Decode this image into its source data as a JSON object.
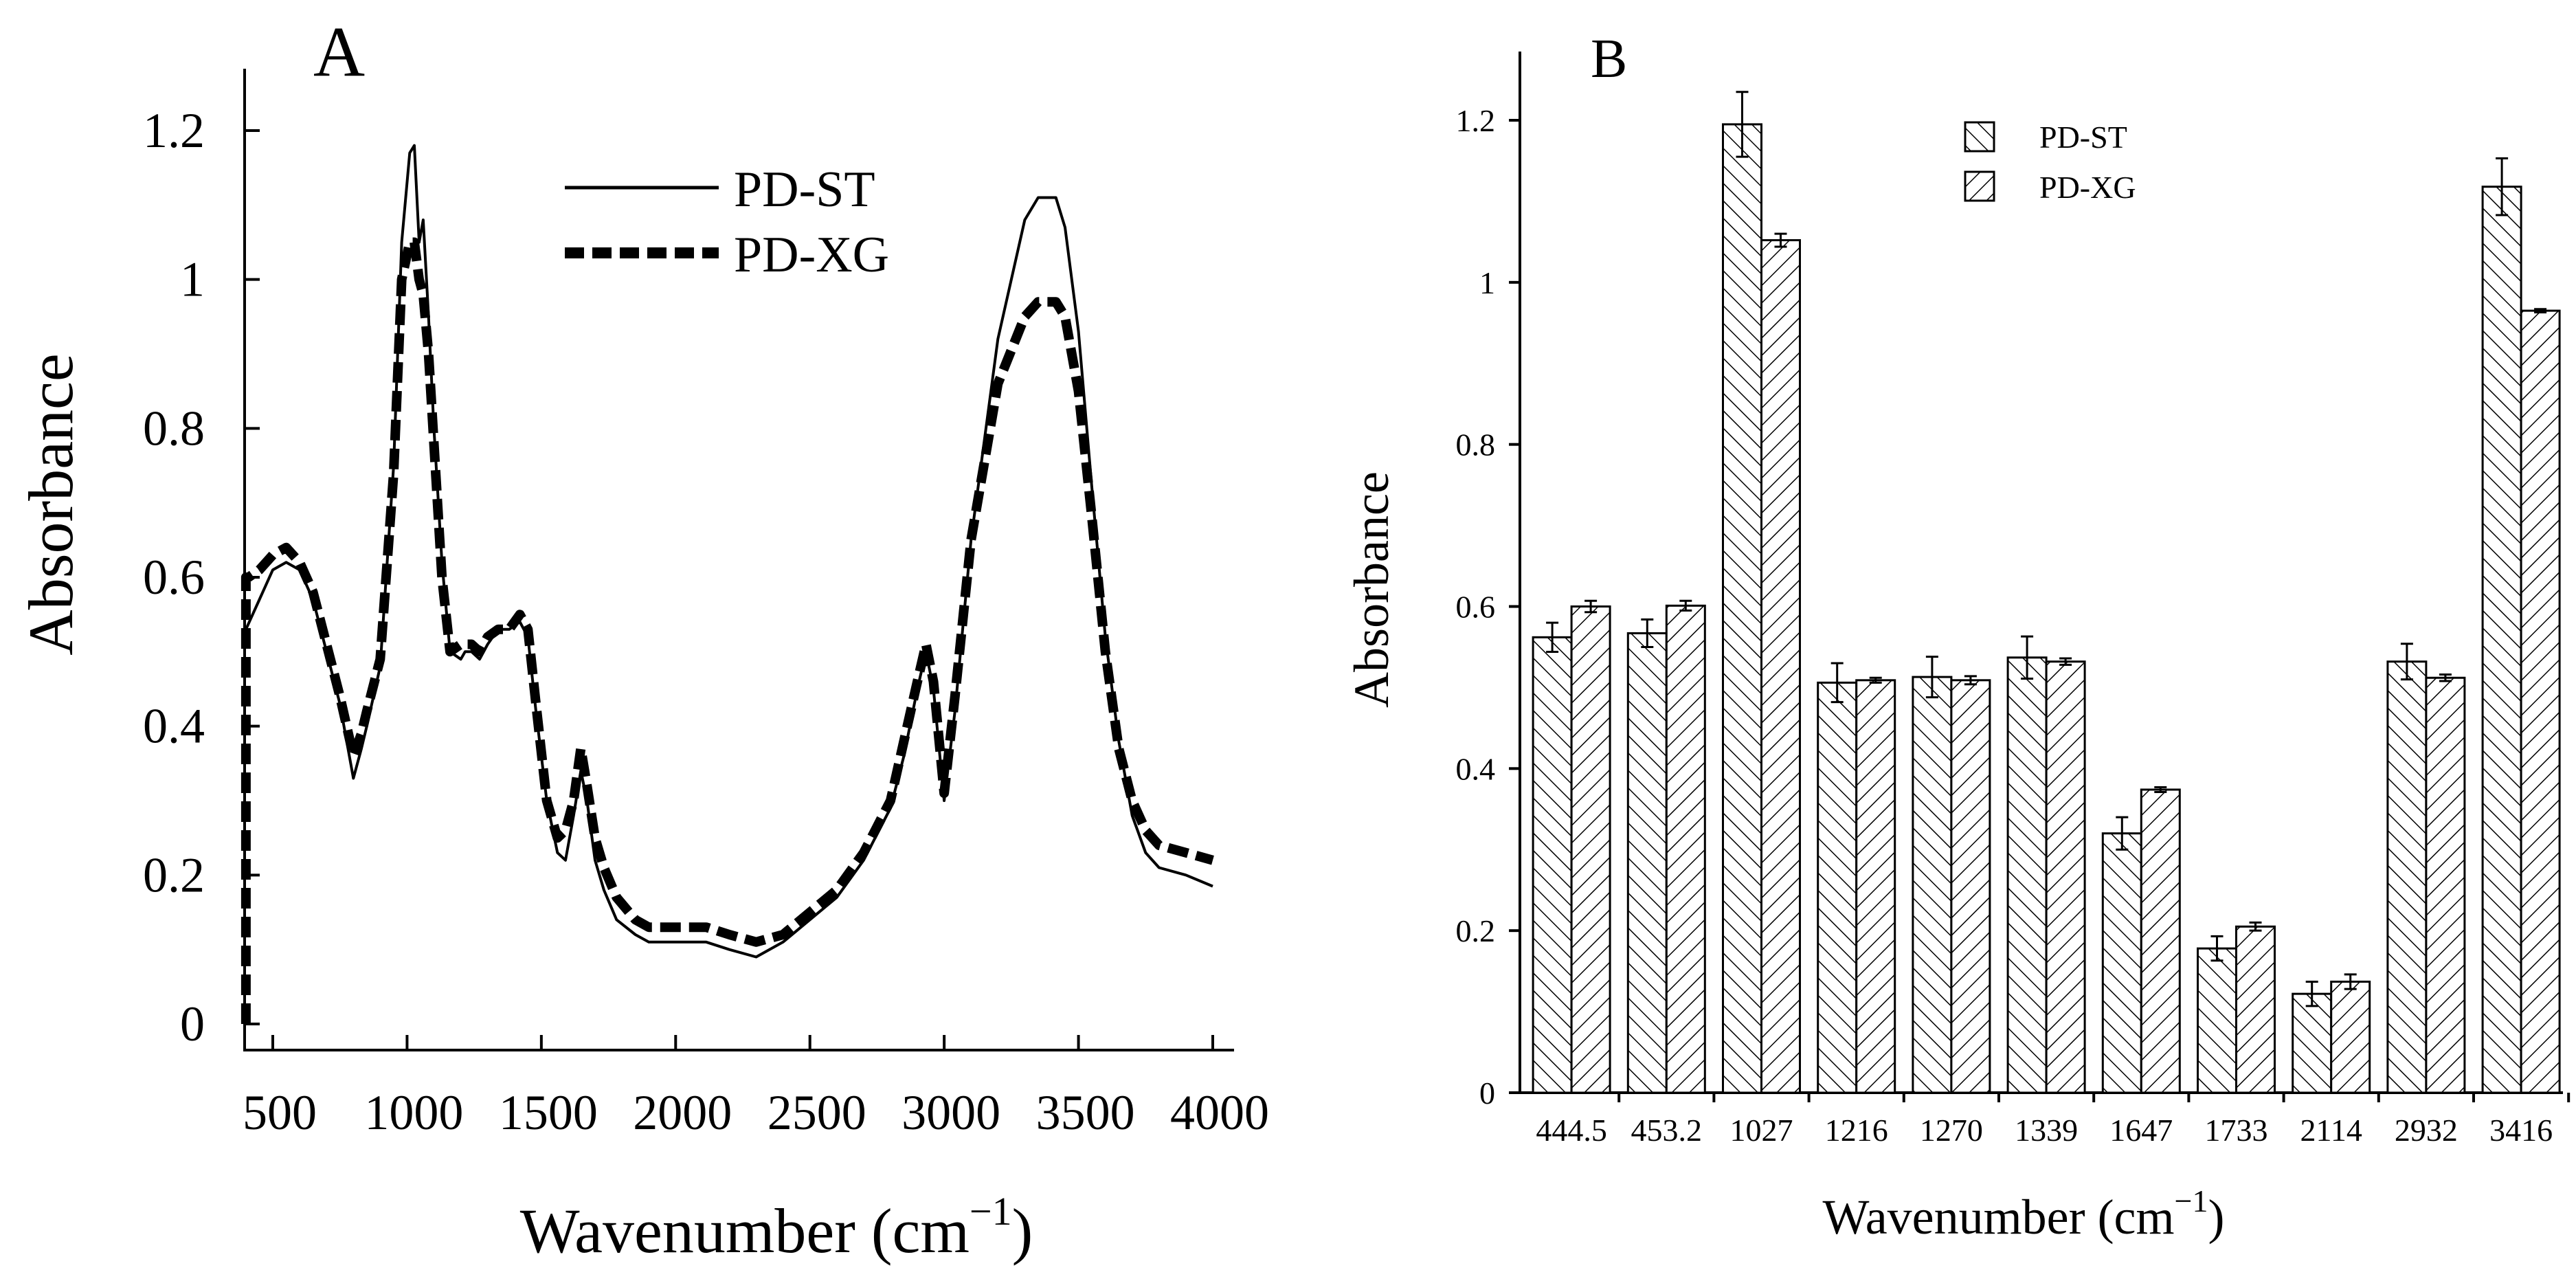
{
  "chart_data": [
    {
      "type": "line",
      "panel_label": "A",
      "xlabel": "Wavenumber (cm",
      "xlabel_sup": "−1",
      "xlabel_close": ")",
      "ylabel": "Absorbance",
      "xlim": [
        300,
        4050
      ],
      "ylim": [
        -0.05,
        1.3
      ],
      "xticks": [
        500,
        1000,
        1500,
        2000,
        2500,
        3000,
        3500,
        4000
      ],
      "xtick_labels": [
        "500",
        "1000",
        "1500",
        "2000",
        "2500",
        "3000",
        "3500",
        "4000"
      ],
      "yticks": [
        0,
        0.2,
        0.4,
        0.6,
        0.8,
        1.0,
        1.2
      ],
      "ytick_labels": [
        "0",
        "0.2",
        "0.4",
        "0.6",
        "0.8",
        "1",
        "1.2"
      ],
      "legend_position": "top-center",
      "series": [
        {
          "name": "PD-ST",
          "style": "solid",
          "x": [
            400,
            450,
            500,
            550,
            600,
            650,
            700,
            750,
            800,
            830,
            850,
            900,
            950,
            980,
            1010,
            1027,
            1045,
            1060,
            1080,
            1100,
            1130,
            1160,
            1200,
            1216,
            1240,
            1270,
            1300,
            1339,
            1380,
            1420,
            1450,
            1480,
            1520,
            1560,
            1590,
            1620,
            1647,
            1670,
            1700,
            1733,
            1780,
            1850,
            1900,
            2000,
            2100,
            2114,
            2200,
            2300,
            2400,
            2500,
            2600,
            2700,
            2800,
            2850,
            2900,
            2932,
            2960,
            3000,
            3040,
            3100,
            3200,
            3300,
            3350,
            3416,
            3450,
            3500,
            3550,
            3600,
            3650,
            3700,
            3750,
            3800,
            3900,
            4000
          ],
          "y": [
            0.53,
            0.57,
            0.61,
            0.62,
            0.61,
            0.57,
            0.5,
            0.43,
            0.33,
            0.37,
            0.4,
            0.48,
            0.75,
            1.05,
            1.17,
            1.18,
            1.05,
            1.08,
            0.95,
            0.8,
            0.62,
            0.5,
            0.49,
            0.5,
            0.5,
            0.49,
            0.51,
            0.53,
            0.53,
            0.54,
            0.52,
            0.42,
            0.3,
            0.23,
            0.22,
            0.28,
            0.34,
            0.3,
            0.22,
            0.18,
            0.14,
            0.12,
            0.11,
            0.11,
            0.11,
            0.11,
            0.1,
            0.09,
            0.11,
            0.14,
            0.17,
            0.22,
            0.29,
            0.36,
            0.45,
            0.5,
            0.45,
            0.3,
            0.42,
            0.65,
            0.92,
            1.08,
            1.11,
            1.11,
            1.07,
            0.93,
            0.72,
            0.52,
            0.38,
            0.28,
            0.23,
            0.21,
            0.2,
            0.185
          ]
        },
        {
          "name": "PD-XG",
          "style": "dashed",
          "x": [
            400,
            400,
            410,
            450,
            500,
            550,
            600,
            650,
            700,
            750,
            800,
            830,
            850,
            900,
            950,
            980,
            1010,
            1027,
            1045,
            1060,
            1080,
            1100,
            1130,
            1160,
            1200,
            1216,
            1240,
            1270,
            1300,
            1339,
            1380,
            1420,
            1450,
            1480,
            1520,
            1560,
            1590,
            1620,
            1647,
            1670,
            1700,
            1733,
            1780,
            1850,
            1900,
            2000,
            2100,
            2114,
            2200,
            2300,
            2400,
            2500,
            2600,
            2700,
            2800,
            2850,
            2900,
            2932,
            2960,
            3000,
            3040,
            3100,
            3200,
            3300,
            3350,
            3416,
            3450,
            3500,
            3550,
            3600,
            3650,
            3700,
            3750,
            3800,
            3900,
            4000
          ],
          "y": [
            0.0,
            0.6,
            0.6,
            0.61,
            0.63,
            0.64,
            0.62,
            0.58,
            0.51,
            0.44,
            0.36,
            0.39,
            0.42,
            0.49,
            0.74,
            1.0,
            1.05,
            1.05,
            1.0,
            0.98,
            0.9,
            0.78,
            0.6,
            0.5,
            0.51,
            0.51,
            0.51,
            0.5,
            0.52,
            0.53,
            0.53,
            0.55,
            0.53,
            0.43,
            0.3,
            0.25,
            0.26,
            0.3,
            0.37,
            0.32,
            0.25,
            0.21,
            0.17,
            0.14,
            0.13,
            0.13,
            0.13,
            0.13,
            0.12,
            0.11,
            0.12,
            0.15,
            0.18,
            0.23,
            0.3,
            0.38,
            0.46,
            0.51,
            0.46,
            0.31,
            0.44,
            0.65,
            0.86,
            0.95,
            0.97,
            0.97,
            0.95,
            0.85,
            0.68,
            0.5,
            0.37,
            0.3,
            0.26,
            0.24,
            0.23,
            0.22
          ]
        }
      ],
      "legend": [
        "PD-ST",
        "PD-XG"
      ]
    },
    {
      "type": "bar",
      "panel_label": "B",
      "xlabel": "Wavenumber  (cm",
      "xlabel_sup": "−1",
      "xlabel_close": ")",
      "ylabel": "Absorbance",
      "ylim": [
        0,
        1.3
      ],
      "yticks": [
        0,
        0.2,
        0.4,
        0.6,
        0.8,
        1.0,
        1.2
      ],
      "ytick_labels": [
        "0",
        "0.2",
        "0.4",
        "0.6",
        "0.8",
        "1",
        "1.2"
      ],
      "categories": [
        "444.5",
        "453.2",
        "1027",
        "1216",
        "1270",
        "1339",
        "1647",
        "1733",
        "2114",
        "2932",
        "3416"
      ],
      "legend_position": "top-center",
      "series": [
        {
          "name": "PD-ST",
          "hatch": "backslash",
          "values": [
            0.562,
            0.567,
            1.195,
            0.506,
            0.513,
            0.537,
            0.32,
            0.178,
            0.122,
            0.532,
            1.118
          ],
          "errors": [
            0.018,
            0.017,
            0.04,
            0.024,
            0.025,
            0.026,
            0.02,
            0.015,
            0.015,
            0.022,
            0.035
          ]
        },
        {
          "name": "PD-XG",
          "hatch": "slash",
          "values": [
            0.6,
            0.601,
            1.052,
            0.509,
            0.509,
            0.532,
            0.374,
            0.205,
            0.137,
            0.512,
            0.965
          ],
          "errors": [
            0.007,
            0.006,
            0.008,
            0.003,
            0.005,
            0.004,
            0.003,
            0.005,
            0.009,
            0.004,
            0.002
          ]
        }
      ],
      "legend": [
        "PD-ST",
        "PD-XG"
      ]
    }
  ]
}
